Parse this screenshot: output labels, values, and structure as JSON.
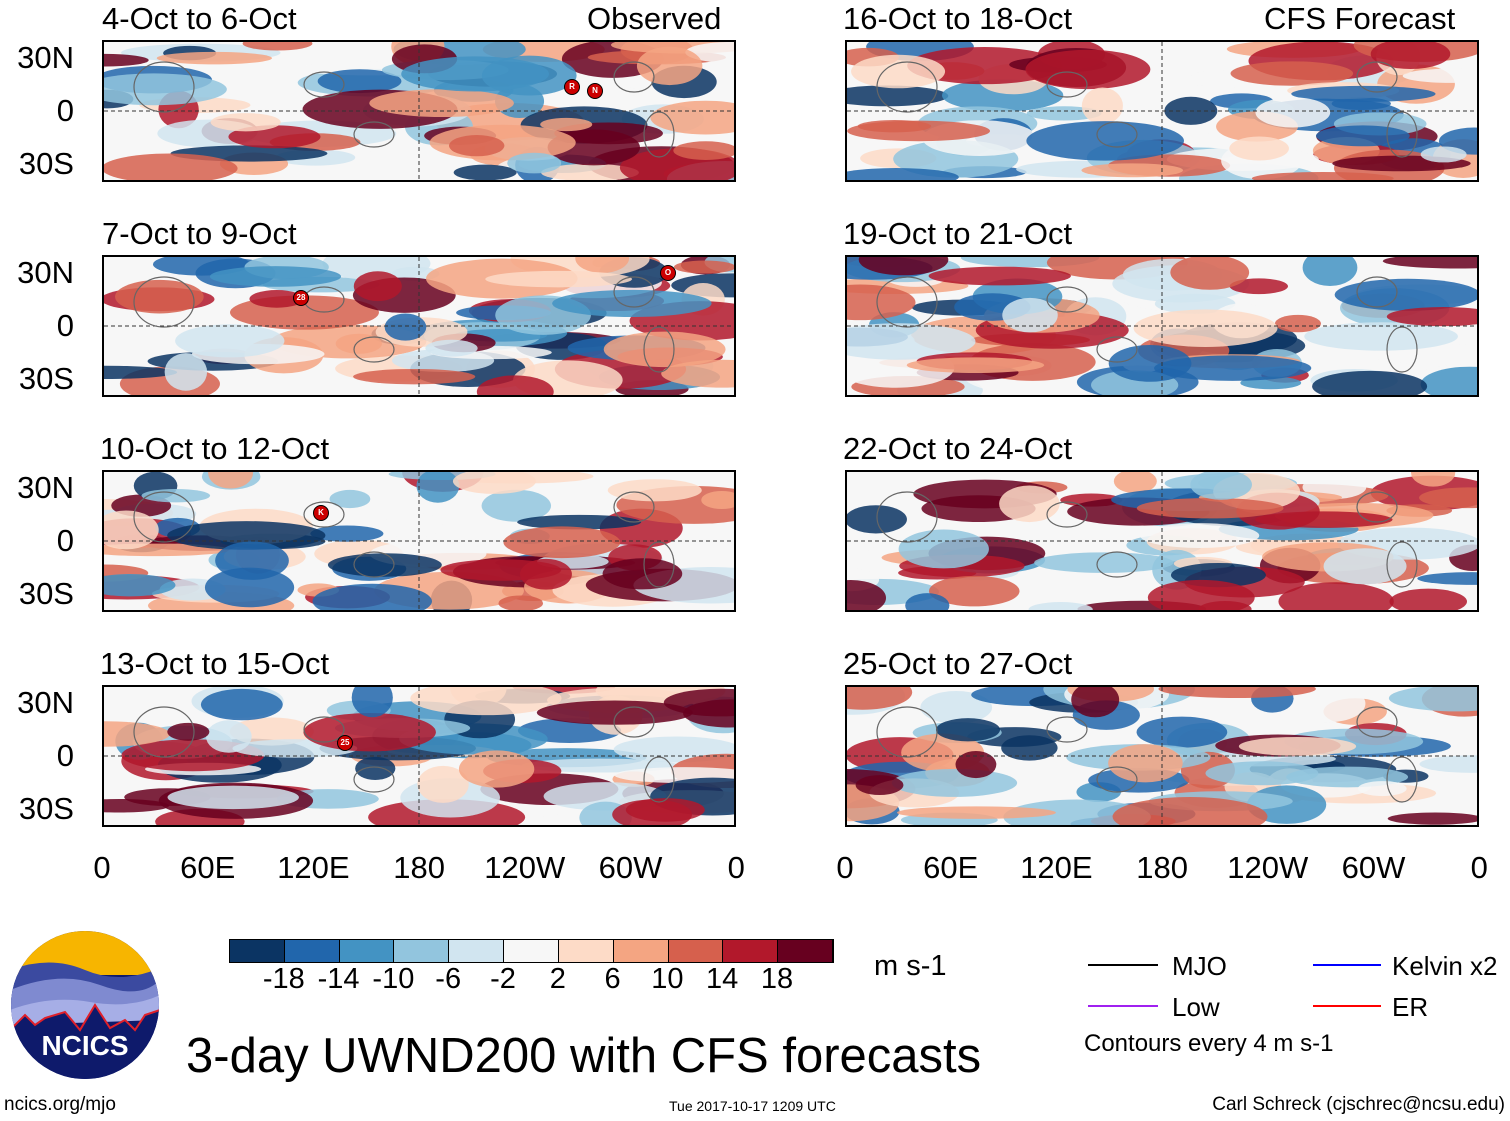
{
  "figure": {
    "title": "3-day UWND200 with CFS forecasts",
    "left_header": "Observed",
    "right_header": "CFS Forecast",
    "timestamp": "Tue 2017-10-17 1209 UTC",
    "credit": "Carl Schreck (cjschrec@ncsu.edu)",
    "url": "ncics.org/mjo",
    "logo_text": "NCICS"
  },
  "panels": {
    "left": [
      "4-Oct to 6-Oct",
      "7-Oct to 9-Oct",
      "10-Oct to 12-Oct",
      "13-Oct to 15-Oct"
    ],
    "right": [
      "16-Oct to 18-Oct",
      "19-Oct to 21-Oct",
      "22-Oct to 24-Oct",
      "25-Oct to 27-Oct"
    ]
  },
  "storm_markers": [
    "R",
    "N",
    "28",
    "O",
    "K",
    "25"
  ],
  "axes": {
    "lat_labels": [
      "30N",
      "0",
      "30S"
    ],
    "lon_labels": [
      "0",
      "60E",
      "120E",
      "180",
      "120W",
      "60W",
      "0"
    ]
  },
  "colorbar": {
    "colors": [
      "#0b3463",
      "#2166ac",
      "#4393c3",
      "#92c5de",
      "#d1e5f0",
      "#f7f7f7",
      "#fddbc7",
      "#f4a582",
      "#d6604d",
      "#b2182b",
      "#67001f"
    ],
    "ticks": [
      "-18",
      "-14",
      "-10",
      "-6",
      "-2",
      "2",
      "6",
      "10",
      "14",
      "18"
    ],
    "units": "m s-1"
  },
  "legend": {
    "items": [
      {
        "label": "MJO",
        "color": "#000000"
      },
      {
        "label": "Kelvin x2",
        "color": "#0000ff"
      },
      {
        "label": "Low",
        "color": "#a020f0"
      },
      {
        "label": "ER",
        "color": "#ff0000"
      }
    ],
    "note": "Contours every 4 m s-1"
  }
}
